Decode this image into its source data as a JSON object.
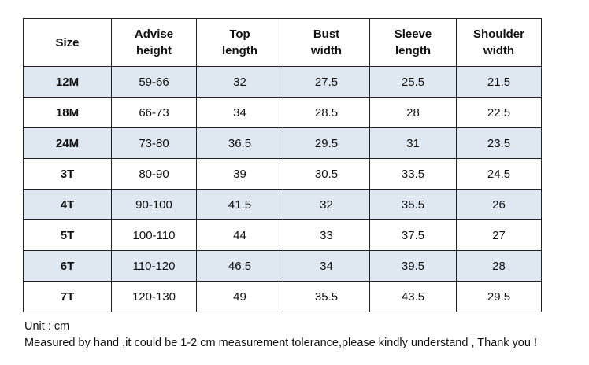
{
  "table": {
    "headers": [
      [
        "Size"
      ],
      [
        "Advise",
        "height"
      ],
      [
        "Top",
        "length"
      ],
      [
        "Bust",
        "width"
      ],
      [
        "Sleeve",
        "length"
      ],
      [
        "Shoulder",
        "width"
      ]
    ],
    "rows": [
      [
        "12M",
        "59-66",
        "32",
        "27.5",
        "25.5",
        "21.5"
      ],
      [
        "18M",
        "66-73",
        "34",
        "28.5",
        "28",
        "22.5"
      ],
      [
        "24M",
        "73-80",
        "36.5",
        "29.5",
        "31",
        "23.5"
      ],
      [
        "3T",
        "80-90",
        "39",
        "30.5",
        "33.5",
        "24.5"
      ],
      [
        "4T",
        "90-100",
        "41.5",
        "32",
        "35.5",
        "26"
      ],
      [
        "5T",
        "100-110",
        "44",
        "33",
        "37.5",
        "27"
      ],
      [
        "6T",
        "110-120",
        "46.5",
        "34",
        "39.5",
        "28"
      ],
      [
        "7T",
        "120-130",
        "49",
        "35.5",
        "43.5",
        "29.5"
      ]
    ],
    "shaded_row_color": "#dfe7f1",
    "border_color": "#222222"
  },
  "notes": {
    "unit": "Unit : cm",
    "tolerance": "Measured by hand ,it could be 1-2 cm measurement tolerance,please kindly understand , Thank you !"
  }
}
